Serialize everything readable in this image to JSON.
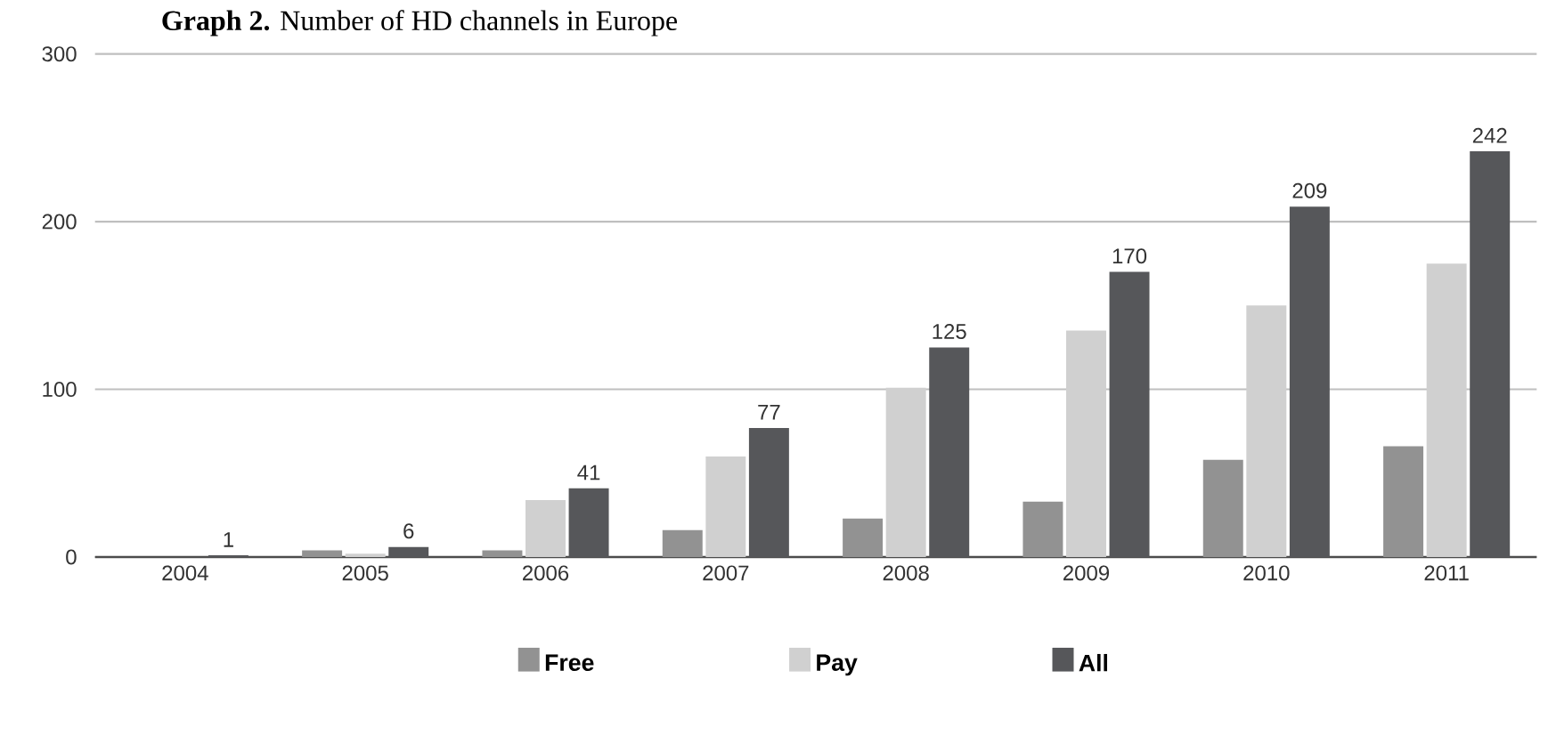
{
  "chart_data": {
    "type": "bar",
    "title": "**Graph 2.** Number of HD channels in Europe",
    "categories": [
      "2004",
      "2005",
      "2006",
      "2007",
      "2008",
      "2009",
      "2010",
      "2011"
    ],
    "series": [
      {
        "name": "Free",
        "color": "#929292",
        "values": [
          0,
          4,
          4,
          16,
          23,
          33,
          58,
          66
        ]
      },
      {
        "name": "Pay",
        "color": "#d0d0d0",
        "values": [
          null,
          2,
          34,
          60,
          101,
          135,
          150,
          175
        ]
      },
      {
        "name": "All",
        "color": "#56575a",
        "values": [
          1,
          6,
          41,
          77,
          125,
          170,
          209,
          242
        ],
        "value_labels": [
          "1",
          "6",
          "41",
          "77",
          "125",
          "170",
          "209",
          "242"
        ]
      }
    ],
    "ylim": [
      0,
      300
    ],
    "yticks": [
      0,
      100,
      200,
      300
    ],
    "grid": "y",
    "legend": "bottom"
  }
}
